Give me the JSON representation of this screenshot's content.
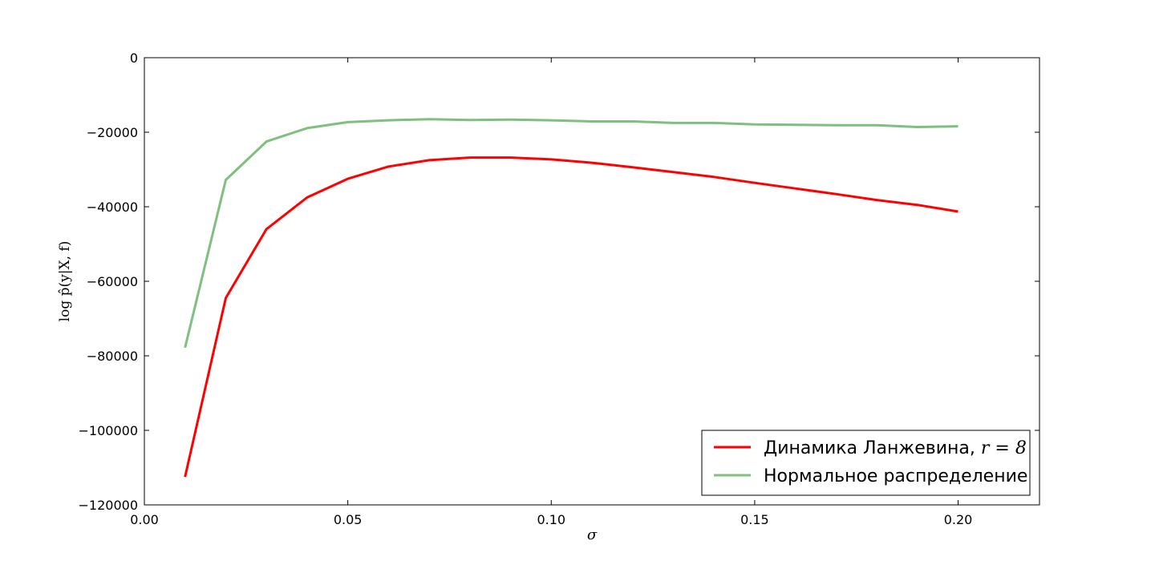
{
  "chart_data": {
    "type": "line",
    "xlabel": "σ",
    "ylabel": "log p̂(y|X, f)",
    "xlim": [
      0.0,
      0.22
    ],
    "ylim": [
      -120000,
      0
    ],
    "x_ticks": [
      "0.00",
      "0.05",
      "0.10",
      "0.15",
      "0.20"
    ],
    "y_ticks": [
      "0",
      "−20000",
      "−40000",
      "−60000",
      "−80000",
      "−100000",
      "−120000"
    ],
    "x_tick_values": [
      0.0,
      0.05,
      0.1,
      0.15,
      0.2
    ],
    "y_tick_values": [
      0,
      -20000,
      -40000,
      -60000,
      -80000,
      -100000,
      -120000
    ],
    "grid": false,
    "legend_position": "bottom-right",
    "x": [
      0.01,
      0.02,
      0.03,
      0.04,
      0.05,
      0.06,
      0.07,
      0.08,
      0.09,
      0.1,
      0.11,
      0.12,
      0.13,
      0.14,
      0.15,
      0.16,
      0.17,
      0.18,
      0.19,
      0.2
    ],
    "series": [
      {
        "name": "Динамика Ланжевина, ",
        "name_math": "r = 8",
        "color": "#ff0000",
        "values": [
          -112500,
          -64500,
          -46000,
          -37500,
          -32500,
          -29200,
          -27500,
          -26800,
          -26800,
          -27300,
          -28200,
          -29400,
          -30700,
          -32000,
          -33600,
          -35100,
          -36600,
          -38200,
          -39500,
          -41300
        ]
      },
      {
        "name": "Нормальное распределение",
        "color": "#7fbf7f",
        "values": [
          -77800,
          -32800,
          -22500,
          -18900,
          -17300,
          -16800,
          -16500,
          -16700,
          -16600,
          -16800,
          -17100,
          -17100,
          -17500,
          -17500,
          -17900,
          -18000,
          -18100,
          -18100,
          -18600,
          -18400
        ]
      }
    ]
  }
}
